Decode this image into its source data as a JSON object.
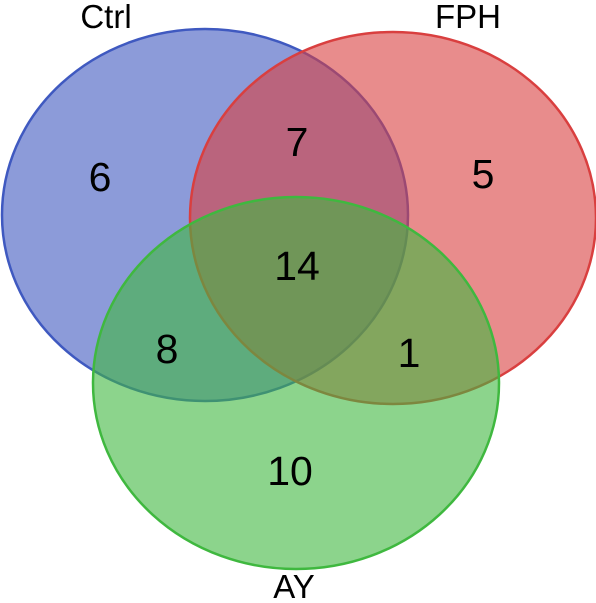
{
  "sets": [
    {
      "id": "ctrl",
      "name": "Ctrl",
      "fill": "#3f59c0",
      "stroke": "#3f59c0"
    },
    {
      "id": "fph",
      "name": "FPH",
      "fill": "#d93f3f",
      "stroke": "#d93f3f"
    },
    {
      "id": "ay",
      "name": "AY",
      "fill": "#3fb83f",
      "stroke": "#3fb83f"
    }
  ],
  "regions": {
    "ctrl_only": "6",
    "fph_only": "5",
    "ay_only": "10",
    "ctrl_fph": "7",
    "ctrl_ay": "8",
    "fph_ay": "1",
    "all": "14"
  }
}
